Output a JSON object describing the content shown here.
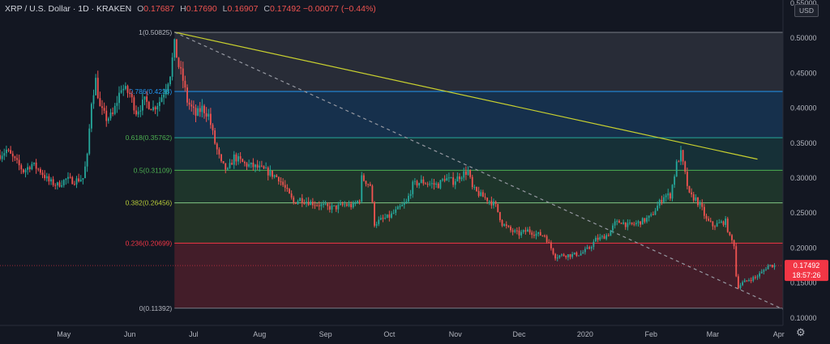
{
  "header": {
    "symbol": "XRP / U.S. Dollar · 1D · KRAKEN",
    "open_label": "O",
    "open": "0.17687",
    "high_label": "H",
    "high": "0.17690",
    "low_label": "L",
    "low": "0.16907",
    "close_label": "C",
    "close": "0.17492",
    "change": "−0.00077 (−0.44%)"
  },
  "currency_label": "USD",
  "settings_icon": "gear-icon",
  "colors": {
    "background": "#131722",
    "up": "#26a69a",
    "down": "#ef5350",
    "trendline": "#c9d12f",
    "price_badge": "#f23645"
  },
  "price_badge": {
    "price": "0.17492",
    "countdown": "18:57:26"
  },
  "chart_data": {
    "type": "candlestick",
    "y_axis": {
      "range": [
        0.0894,
        0.5545
      ],
      "ticks": [
        0.1,
        0.15,
        0.2,
        0.25,
        0.3,
        0.35,
        0.4,
        0.45,
        0.5,
        0.55
      ],
      "tick_labels": [
        "0.10000",
        "0.15000",
        "0.20000",
        "0.25000",
        "0.30000",
        "0.35000",
        "0.40000",
        "0.45000",
        "0.50000",
        "0.55000"
      ]
    },
    "x_axis": {
      "range": [
        "2019-04-01",
        "2020-04-03"
      ],
      "ticks": [
        {
          "date": "2019-05-01",
          "label": "May"
        },
        {
          "date": "2019-06-01",
          "label": "Jun"
        },
        {
          "date": "2019-07-01",
          "label": "Jul"
        },
        {
          "date": "2019-08-01",
          "label": "Aug"
        },
        {
          "date": "2019-09-01",
          "label": "Sep"
        },
        {
          "date": "2019-10-01",
          "label": "Oct"
        },
        {
          "date": "2019-11-01",
          "label": "Nov"
        },
        {
          "date": "2019-12-01",
          "label": "Dec"
        },
        {
          "date": "2020-01-01",
          "label": "2020"
        },
        {
          "date": "2020-02-01",
          "label": "Feb"
        },
        {
          "date": "2020-03-01",
          "label": "Mar"
        },
        {
          "date": "2020-04-01",
          "label": "Apr"
        }
      ]
    },
    "fibonacci": [
      {
        "ratio": "1",
        "price": 0.50825,
        "label": "1(0.50825)",
        "line": "#787b86",
        "label_color": "#b2b5be",
        "fill": "rgba(120,123,134,0.22)"
      },
      {
        "ratio": "0.786",
        "price": 0.4238,
        "label": "0.786(0.4238)",
        "line": "#2196f3",
        "label_color": "#2196f3",
        "fill": "rgba(33,150,243,0.20)"
      },
      {
        "ratio": "0.618",
        "price": 0.35762,
        "label": "0.618(0.35762)",
        "line": "#26a69a",
        "label_color": "#4caf50",
        "fill": "rgba(38,166,154,0.18)"
      },
      {
        "ratio": "0.5",
        "price": 0.31109,
        "label": "0.5(0.31109)",
        "line": "#4caf50",
        "label_color": "#4caf50",
        "fill": "rgba(76,175,80,0.20)"
      },
      {
        "ratio": "0.382",
        "price": 0.26456,
        "label": "0.382(0.26456)",
        "line": "#81c784",
        "label_color": "#b5c938",
        "fill": "rgba(129,199,60,0.16)"
      },
      {
        "ratio": "0.236",
        "price": 0.20699,
        "label": "0.236(0.20699)",
        "line": "#f23645",
        "label_color": "#f23645",
        "fill": "rgba(242,54,69,0.22)"
      },
      {
        "ratio": "0",
        "price": 0.11392,
        "label": "0(0.11392)",
        "line": "#787b86",
        "label_color": "#b2b5be",
        "fill": null
      }
    ],
    "fib_span": {
      "start": "2019-06-22",
      "end": "2020-04-03"
    },
    "trendlines": [
      {
        "name": "",
        "style": "solid",
        "start": {
          "date": "2019-06-22",
          "price": 0.5085
        },
        "end": {
          "date": "2020-03-22",
          "price": 0.327
        }
      },
      {
        "name": "",
        "style": "dashed",
        "start": {
          "date": "2019-06-22",
          "price": 0.5085
        },
        "end": {
          "date": "2020-04-03",
          "price": 0.1125
        }
      }
    ],
    "anchors": [
      [
        "2019-04-01",
        0.333
      ],
      [
        "2019-04-04",
        0.34
      ],
      [
        "2019-04-08",
        0.325
      ],
      [
        "2019-04-12",
        0.31
      ],
      [
        "2019-04-16",
        0.32
      ],
      [
        "2019-04-20",
        0.31
      ],
      [
        "2019-04-24",
        0.295
      ],
      [
        "2019-04-28",
        0.29
      ],
      [
        "2019-05-02",
        0.298
      ],
      [
        "2019-05-06",
        0.296
      ],
      [
        "2019-05-10",
        0.3
      ],
      [
        "2019-05-12",
        0.33
      ],
      [
        "2019-05-14",
        0.41
      ],
      [
        "2019-05-16",
        0.44
      ],
      [
        "2019-05-18",
        0.4
      ],
      [
        "2019-05-21",
        0.385
      ],
      [
        "2019-05-24",
        0.39
      ],
      [
        "2019-05-28",
        0.43
      ],
      [
        "2019-06-01",
        0.42
      ],
      [
        "2019-06-04",
        0.395
      ],
      [
        "2019-06-08",
        0.41
      ],
      [
        "2019-06-12",
        0.4
      ],
      [
        "2019-06-15",
        0.41
      ],
      [
        "2019-06-18",
        0.43
      ],
      [
        "2019-06-20",
        0.45
      ],
      [
        "2019-06-22",
        0.49
      ],
      [
        "2019-06-24",
        0.46
      ],
      [
        "2019-06-26",
        0.44
      ],
      [
        "2019-06-28",
        0.41
      ],
      [
        "2019-06-30",
        0.4
      ],
      [
        "2019-07-02",
        0.39
      ],
      [
        "2019-07-05",
        0.4
      ],
      [
        "2019-07-08",
        0.39
      ],
      [
        "2019-07-11",
        0.35
      ],
      [
        "2019-07-14",
        0.32
      ],
      [
        "2019-07-17",
        0.31
      ],
      [
        "2019-07-20",
        0.33
      ],
      [
        "2019-07-25",
        0.32
      ],
      [
        "2019-07-31",
        0.315
      ],
      [
        "2019-08-04",
        0.31
      ],
      [
        "2019-08-07",
        0.305
      ],
      [
        "2019-08-10",
        0.3
      ],
      [
        "2019-08-14",
        0.28
      ],
      [
        "2019-08-17",
        0.265
      ],
      [
        "2019-08-20",
        0.27
      ],
      [
        "2019-08-25",
        0.265
      ],
      [
        "2019-08-29",
        0.262
      ],
      [
        "2019-09-02",
        0.258
      ],
      [
        "2019-09-06",
        0.258
      ],
      [
        "2019-09-10",
        0.262
      ],
      [
        "2019-09-14",
        0.26
      ],
      [
        "2019-09-17",
        0.27
      ],
      [
        "2019-09-18",
        0.3
      ],
      [
        "2019-09-20",
        0.295
      ],
      [
        "2019-09-22",
        0.29
      ],
      [
        "2019-09-24",
        0.235
      ],
      [
        "2019-09-27",
        0.24
      ],
      [
        "2019-10-01",
        0.245
      ],
      [
        "2019-10-05",
        0.255
      ],
      [
        "2019-10-09",
        0.265
      ],
      [
        "2019-10-12",
        0.29
      ],
      [
        "2019-10-16",
        0.295
      ],
      [
        "2019-10-20",
        0.292
      ],
      [
        "2019-10-24",
        0.29
      ],
      [
        "2019-10-27",
        0.3
      ],
      [
        "2019-10-31",
        0.295
      ],
      [
        "2019-11-04",
        0.305
      ],
      [
        "2019-11-07",
        0.31
      ],
      [
        "2019-11-09",
        0.285
      ],
      [
        "2019-11-13",
        0.275
      ],
      [
        "2019-11-17",
        0.268
      ],
      [
        "2019-11-20",
        0.26
      ],
      [
        "2019-11-23",
        0.235
      ],
      [
        "2019-11-27",
        0.225
      ],
      [
        "2019-12-01",
        0.22
      ],
      [
        "2019-12-05",
        0.225
      ],
      [
        "2019-12-09",
        0.22
      ],
      [
        "2019-12-13",
        0.218
      ],
      [
        "2019-12-16",
        0.2
      ],
      [
        "2019-12-18",
        0.188
      ],
      [
        "2019-12-22",
        0.19
      ],
      [
        "2019-12-26",
        0.19
      ],
      [
        "2019-12-30",
        0.192
      ],
      [
        "2020-01-03",
        0.2
      ],
      [
        "2020-01-06",
        0.212
      ],
      [
        "2020-01-09",
        0.215
      ],
      [
        "2020-01-12",
        0.22
      ],
      [
        "2020-01-15",
        0.235
      ],
      [
        "2020-01-18",
        0.238
      ],
      [
        "2020-01-21",
        0.232
      ],
      [
        "2020-01-25",
        0.235
      ],
      [
        "2020-01-29",
        0.24
      ],
      [
        "2020-02-01",
        0.245
      ],
      [
        "2020-02-04",
        0.26
      ],
      [
        "2020-02-07",
        0.275
      ],
      [
        "2020-02-10",
        0.275
      ],
      [
        "2020-02-13",
        0.32
      ],
      [
        "2020-02-15",
        0.335
      ],
      [
        "2020-02-17",
        0.305
      ],
      [
        "2020-02-19",
        0.275
      ],
      [
        "2020-02-22",
        0.27
      ],
      [
        "2020-02-25",
        0.255
      ],
      [
        "2020-02-27",
        0.24
      ],
      [
        "2020-03-01",
        0.232
      ],
      [
        "2020-03-04",
        0.235
      ],
      [
        "2020-03-07",
        0.238
      ],
      [
        "2020-03-09",
        0.215
      ],
      [
        "2020-03-11",
        0.205
      ],
      [
        "2020-03-12",
        0.16
      ],
      [
        "2020-03-13",
        0.145
      ],
      [
        "2020-03-15",
        0.15
      ],
      [
        "2020-03-18",
        0.155
      ],
      [
        "2020-03-21",
        0.158
      ],
      [
        "2020-03-24",
        0.165
      ],
      [
        "2020-03-27",
        0.175
      ],
      [
        "2020-03-30",
        0.1749
      ]
    ]
  }
}
